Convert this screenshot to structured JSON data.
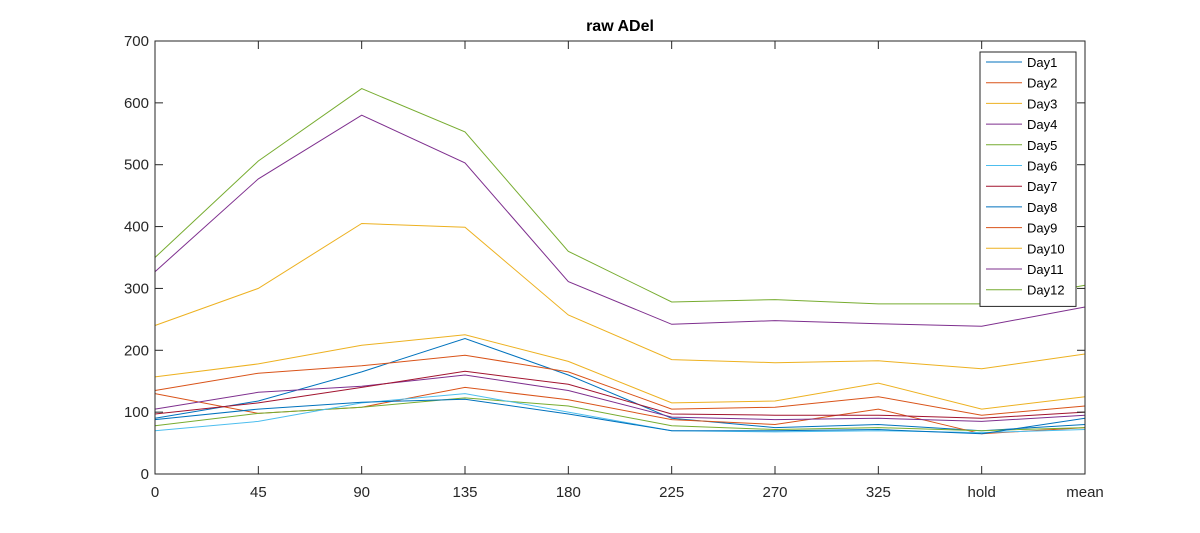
{
  "chart_data": {
    "type": "line",
    "title": "raw ADel",
    "xlabel": "",
    "ylabel": "",
    "categories": [
      "0",
      "45",
      "90",
      "135",
      "180",
      "225",
      "270",
      "325",
      "hold",
      "mean"
    ],
    "yticks": [
      "0",
      "100",
      "200",
      "300",
      "400",
      "500",
      "600",
      "700"
    ],
    "ylim": [
      0,
      700
    ],
    "grid": false,
    "legend": "top-right",
    "series": [
      {
        "name": "Day1",
        "color": "#0072BD",
        "values": [
          90,
          118,
          165,
          219,
          160,
          90,
          75,
          80,
          70,
          80
        ]
      },
      {
        "name": "Day2",
        "color": "#D95319",
        "values": [
          130,
          98,
          108,
          140,
          120,
          88,
          80,
          105,
          65,
          75
        ]
      },
      {
        "name": "Day3",
        "color": "#EDB120",
        "values": [
          157,
          178,
          208,
          225,
          182,
          115,
          118,
          147,
          105,
          125
        ]
      },
      {
        "name": "Day4",
        "color": "#7E2F8E",
        "values": [
          105,
          132,
          142,
          160,
          135,
          92,
          88,
          90,
          85,
          95
        ]
      },
      {
        "name": "Day5",
        "color": "#77AC30",
        "values": [
          78,
          98,
          108,
          123,
          110,
          78,
          72,
          75,
          70,
          75
        ]
      },
      {
        "name": "Day6",
        "color": "#4DBEEE",
        "values": [
          70,
          85,
          115,
          130,
          100,
          70,
          68,
          70,
          67,
          72
        ]
      },
      {
        "name": "Day7",
        "color": "#A2142F",
        "values": [
          97,
          115,
          140,
          166,
          145,
          97,
          95,
          95,
          90,
          100
        ]
      },
      {
        "name": "Day8",
        "color": "#0072BD",
        "values": [
          88,
          105,
          116,
          121,
          97,
          70,
          70,
          72,
          65,
          90
        ]
      },
      {
        "name": "Day9",
        "color": "#D95319",
        "values": [
          135,
          163,
          175,
          192,
          165,
          105,
          108,
          125,
          95,
          110
        ]
      },
      {
        "name": "Day10",
        "color": "#EDB120",
        "values": [
          240,
          300,
          405,
          399,
          257,
          185,
          180,
          183,
          170,
          194
        ]
      },
      {
        "name": "Day11",
        "color": "#7E2F8E",
        "values": [
          327,
          477,
          580,
          503,
          311,
          242,
          248,
          243,
          239,
          270
        ]
      },
      {
        "name": "Day12",
        "color": "#77AC30",
        "values": [
          350,
          506,
          623,
          553,
          360,
          278,
          282,
          275,
          275,
          305
        ]
      }
    ]
  }
}
